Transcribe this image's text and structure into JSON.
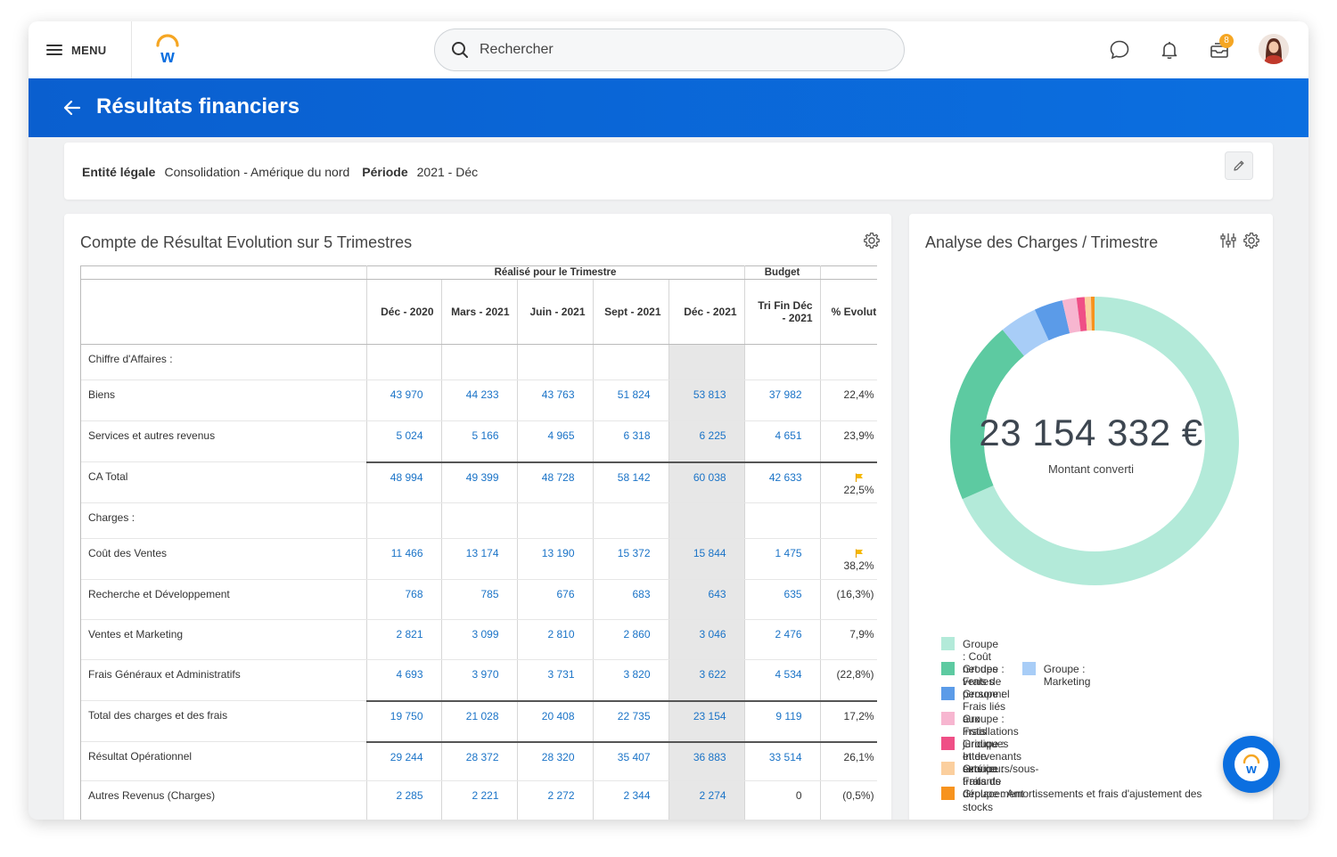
{
  "topbar": {
    "menu_label": "MENU",
    "search_placeholder": "Rechercher",
    "inbox_badge": "8"
  },
  "header": {
    "title": "Résultats financiers"
  },
  "filters": {
    "entity_label": "Entité légale",
    "entity_value": "Consolidation - Amérique du nord",
    "period_label": "Période",
    "period_value": "2021 - Déc"
  },
  "income_statement": {
    "title": "Compte de Résultat Evolution sur 5 Trimestres",
    "group_headers": {
      "realise": "Réalisé pour le Trimestre",
      "budget": "Budget"
    },
    "columns": [
      "Déc - 2020",
      "Mars - 2021",
      "Juin - 2021",
      "Sept - 2021",
      "Déc - 2021",
      "Tri Fin Déc - 2021",
      "% Evolution N"
    ],
    "rows": [
      {
        "label": "Chiffre d'Affaires :",
        "section": true
      },
      {
        "label": "Biens",
        "values": [
          "43 970",
          "44 233",
          "43 763",
          "51 824",
          "53 813"
        ],
        "budget": "37 982",
        "pct": "22,4%"
      },
      {
        "label": "Services et autres revenus",
        "values": [
          "5 024",
          "5 166",
          "4 965",
          "6 318",
          "6 225"
        ],
        "budget": "4 651",
        "pct": "23,9%"
      },
      {
        "label": "CA Total",
        "values": [
          "48 994",
          "49 399",
          "48 728",
          "58 142",
          "60 038"
        ],
        "budget": "42 633",
        "pct": "22,5%",
        "flag": true,
        "sep": true
      },
      {
        "label": "Charges :",
        "section": true
      },
      {
        "label": "Coût des Ventes",
        "values": [
          "11 466",
          "13 174",
          "13 190",
          "15 372",
          "15 844"
        ],
        "budget": "1 475",
        "pct": "38,2%",
        "flag": true
      },
      {
        "label": "Recherche et Développement",
        "values": [
          "768",
          "785",
          "676",
          "683",
          "643"
        ],
        "budget": "635",
        "pct": "(16,3%)"
      },
      {
        "label": "Ventes et Marketing",
        "values": [
          "2 821",
          "3 099",
          "2 810",
          "2 860",
          "3 046"
        ],
        "budget": "2 476",
        "pct": "7,9%"
      },
      {
        "label": "Frais Généraux et Administratifs",
        "values": [
          "4 693",
          "3 970",
          "3 731",
          "3 820",
          "3 622"
        ],
        "budget": "4 534",
        "pct": "(22,8%)"
      },
      {
        "label": "Total des charges et des frais",
        "values": [
          "19 750",
          "21 028",
          "20 408",
          "22 735",
          "23 154"
        ],
        "budget": "9 119",
        "pct": "17,2%",
        "sep": true
      },
      {
        "label": "Résultat Opérationnel",
        "values": [
          "29 244",
          "28 372",
          "28 320",
          "35 407",
          "36 883"
        ],
        "budget": "33 514",
        "pct": "26,1%",
        "sep": true
      },
      {
        "label": "Autres Revenus (Charges)",
        "values": [
          "2 285",
          "2 221",
          "2 272",
          "2 344",
          "2 274"
        ],
        "budget": "0",
        "pct": "(0,5%)",
        "budget_plain": true
      }
    ]
  },
  "charges_analysis": {
    "title": "Analyse des Charges / Trimestre",
    "total": "23 154 332 €",
    "subtitle": "Montant converti"
  },
  "chart_data": {
    "type": "pie",
    "donut": true,
    "labels": [
      "Groupe : Coût net des ventes",
      "Groupe : Frais de personnel",
      "Groupe : Marketing",
      "Groupe : Frais liés aux installations",
      "Groupe : Frais juridiques et de service",
      "Groupe : Intervenants extérieurs/sous-traitants",
      "Groupe : Frais de déplacement",
      "Groupe : Amortissements et frais d'ajustement des stocks"
    ],
    "values": [
      68.4,
      20.6,
      4.2,
      3.2,
      1.6,
      0.9,
      0.7,
      0.4
    ],
    "colors": [
      "#b3ead9",
      "#5dcaa1",
      "#a8cdf7",
      "#5b9be8",
      "#f7b6d0",
      "#ef4f86",
      "#fbcf9e",
      "#f7931e"
    ],
    "legend": "bottom"
  }
}
